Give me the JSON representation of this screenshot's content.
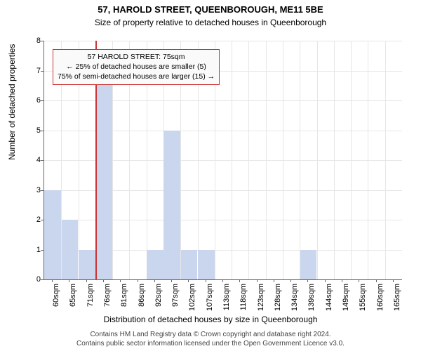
{
  "chart": {
    "type": "histogram",
    "title": "57, HAROLD STREET, QUEENBOROUGH, ME11 5BE",
    "title_fontsize": 13,
    "subtitle": "Size of property relative to detached houses in Queenborough",
    "subtitle_fontsize": 12,
    "ylabel": "Number of detached properties",
    "xlabel": "Distribution of detached houses by size in Queenborough",
    "label_fontsize": 12,
    "ylim": [
      0,
      8
    ],
    "ytick_step": 1,
    "background_color": "#ffffff",
    "grid_color": "#e6e6e6",
    "axis_color": "#666666",
    "tick_fontsize": 11,
    "bar_color": "#cad6ed",
    "bar_width_ratio": 0.98,
    "marker_line_color": "#cc3333",
    "categories": [
      "60sqm",
      "65sqm",
      "71sqm",
      "76sqm",
      "81sqm",
      "86sqm",
      "92sqm",
      "97sqm",
      "102sqm",
      "107sqm",
      "113sqm",
      "118sqm",
      "123sqm",
      "128sqm",
      "134sqm",
      "139sqm",
      "144sqm",
      "149sqm",
      "155sqm",
      "160sqm",
      "165sqm"
    ],
    "values": [
      3,
      2,
      1,
      7,
      0,
      0,
      1,
      5,
      1,
      1,
      0,
      0,
      0,
      0,
      0,
      1,
      0,
      0,
      0,
      0,
      0
    ],
    "marker_category_index": 3,
    "annotation": {
      "line1": "57 HAROLD STREET: 75sqm",
      "line2": "← 25% of detached houses are smaller (5)",
      "line3": "75% of semi-detached houses are larger (15) →"
    },
    "footer_line1": "Contains HM Land Registry data © Crown copyright and database right 2024.",
    "footer_line2": "Contains public sector information licensed under the Open Government Licence v3.0."
  }
}
